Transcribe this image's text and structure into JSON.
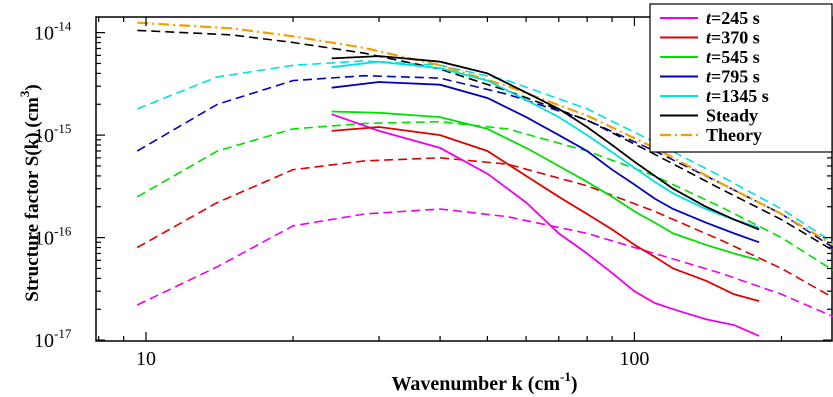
{
  "chart_data": {
    "type": "line",
    "xlabel": "Wavenumber  k (cm",
    "xlabel_exponent": "-1",
    "xlabel_suffix": ")",
    "ylabel": "Structure factor  S(k) (cm",
    "ylabel_exponent": "3",
    "ylabel_suffix": ")",
    "x_scale": "log",
    "y_scale": "log",
    "xlim": [
      7.9,
      255
    ],
    "ylim": [
      9.8e-18,
      1.42e-14
    ],
    "x_ticks": [
      {
        "value": 10,
        "label": "10"
      },
      {
        "value": 100,
        "label": "100"
      }
    ],
    "y_ticks": [
      {
        "value": 1e-14,
        "base": "10",
        "exp": "-14"
      },
      {
        "value": 1e-15,
        "base": "10",
        "exp": "-15"
      },
      {
        "value": 1e-16,
        "base": "10",
        "exp": "-16"
      },
      {
        "value": 1e-17,
        "base": "10",
        "exp": "-17"
      }
    ],
    "legend_position": "top-right",
    "legend": [
      {
        "label": "t=245 s",
        "italic_prefix": "t",
        "text": "=245 s",
        "color": "#ee00ee",
        "style": "solid"
      },
      {
        "label": "t=370 s",
        "italic_prefix": "t",
        "text": "=370 s",
        "color": "#e00000",
        "style": "solid"
      },
      {
        "label": "t=545 s",
        "italic_prefix": "t",
        "text": "=545 s",
        "color": "#00e000",
        "style": "solid"
      },
      {
        "label": "t=795 s",
        "italic_prefix": "t",
        "text": "=795 s",
        "color": "#0000c0",
        "style": "solid"
      },
      {
        "label": "t=1345 s",
        "italic_prefix": "t",
        "text": "=1345 s",
        "color": "#00e0e0",
        "style": "solid"
      },
      {
        "label": "Steady",
        "italic_prefix": "",
        "text": "Steady",
        "color": "#000000",
        "style": "solid"
      },
      {
        "label": "Theory",
        "italic_prefix": "",
        "text": "Theory",
        "color": "#f0a000",
        "style": "dashdot"
      }
    ],
    "series": [
      {
        "name": "t=245 s",
        "color": "#ee00ee",
        "kind": "dashed",
        "x": [
          9.6,
          14,
          20,
          28,
          40,
          55,
          80,
          110,
          150,
          200,
          255
        ],
        "y": [
          2.2e-17,
          5.2e-17,
          1.3e-16,
          1.7e-16,
          1.9e-16,
          1.6e-16,
          1.1e-16,
          7e-17,
          4.5e-17,
          2.8e-17,
          1.7e-17
        ]
      },
      {
        "name": "t=370 s",
        "color": "#e00000",
        "kind": "dashed",
        "x": [
          9.6,
          14,
          20,
          28,
          40,
          55,
          80,
          110,
          150,
          200,
          255
        ],
        "y": [
          8e-17,
          2.2e-16,
          4.6e-16,
          5.6e-16,
          6e-16,
          5.2e-16,
          3.2e-16,
          1.8e-16,
          9.5e-17,
          5e-17,
          2.6e-17
        ]
      },
      {
        "name": "t=545 s",
        "color": "#00e000",
        "kind": "dashed",
        "x": [
          9.6,
          14,
          20,
          28,
          40,
          55,
          80,
          110,
          150,
          200,
          255
        ],
        "y": [
          2.5e-16,
          7e-16,
          1.15e-15,
          1.3e-15,
          1.35e-15,
          1.15e-15,
          7e-16,
          4e-16,
          2e-16,
          1e-16,
          4.8e-17
        ]
      },
      {
        "name": "t=795 s",
        "color": "#0000c0",
        "kind": "dashed",
        "x": [
          9.6,
          14,
          20,
          28,
          40,
          55,
          80,
          110,
          150,
          200,
          255
        ],
        "y": [
          7e-16,
          2e-15,
          3.4e-15,
          3.8e-15,
          3.6e-15,
          2.5e-15,
          1.4e-15,
          7e-16,
          3.4e-16,
          1.7e-16,
          8e-17
        ]
      },
      {
        "name": "t=1345 s",
        "color": "#00e0e0",
        "kind": "dashed",
        "x": [
          9.6,
          14,
          20,
          28,
          40,
          55,
          80,
          110,
          150,
          200,
          255
        ],
        "y": [
          1.8e-15,
          3.7e-15,
          4.8e-15,
          5.3e-15,
          4.8e-15,
          3.4e-15,
          1.8e-15,
          8.5e-16,
          4e-16,
          1.9e-16,
          9e-17
        ]
      },
      {
        "name": "Steady",
        "color": "#000000",
        "kind": "dashed",
        "x": [
          9.6,
          15,
          20,
          28,
          40,
          55,
          80,
          110,
          150,
          200,
          255
        ],
        "y": [
          1.05e-14,
          9.5e-15,
          8e-15,
          6.3e-15,
          4.4e-15,
          2.7e-15,
          1.4e-15,
          6.5e-16,
          3e-16,
          1.5e-16,
          7.5e-17
        ]
      },
      {
        "name": "Theory",
        "color": "#f0a000",
        "kind": "dashdot",
        "x": [
          9.6,
          15,
          20,
          28,
          40,
          55,
          80,
          110,
          150,
          200,
          255
        ],
        "y": [
          1.25e-14,
          1.1e-14,
          9.2e-15,
          7.1e-15,
          4.8e-15,
          3e-15,
          1.55e-15,
          7.5e-16,
          3.4e-16,
          1.7e-16,
          8.5e-17
        ]
      },
      {
        "name": "t=245 s",
        "color": "#ee00ee",
        "kind": "solid",
        "x": [
          24,
          30,
          40,
          50,
          60,
          70,
          80,
          90,
          100,
          110,
          120,
          140,
          160,
          180
        ],
        "y": [
          1.6e-15,
          1.1e-15,
          7.5e-16,
          4.2e-16,
          2.2e-16,
          1.1e-16,
          7e-17,
          4.5e-17,
          3e-17,
          2.3e-17,
          2e-17,
          1.6e-17,
          1.4e-17,
          1.1e-17
        ]
      },
      {
        "name": "t=370 s",
        "color": "#e00000",
        "kind": "solid",
        "x": [
          24,
          30,
          40,
          50,
          60,
          70,
          80,
          90,
          100,
          110,
          120,
          140,
          160,
          180
        ],
        "y": [
          1.1e-15,
          1.2e-15,
          1e-15,
          7e-16,
          4e-16,
          2.5e-16,
          1.7e-16,
          1.2e-16,
          8.5e-17,
          6.5e-17,
          5e-17,
          3.8e-17,
          2.8e-17,
          2.4e-17
        ]
      },
      {
        "name": "t=545 s",
        "color": "#00e000",
        "kind": "solid",
        "x": [
          24,
          30,
          40,
          50,
          60,
          70,
          80,
          90,
          100,
          110,
          120,
          140,
          160,
          180
        ],
        "y": [
          1.7e-15,
          1.65e-15,
          1.5e-15,
          1.15e-15,
          7.5e-16,
          5e-16,
          3.5e-16,
          2.5e-16,
          1.8e-16,
          1.4e-16,
          1.1e-16,
          8.5e-17,
          7e-17,
          6e-17
        ]
      },
      {
        "name": "t=795 s",
        "color": "#0000c0",
        "kind": "solid",
        "x": [
          24,
          30,
          40,
          50,
          60,
          70,
          80,
          90,
          100,
          110,
          120,
          140,
          160,
          180
        ],
        "y": [
          2.9e-15,
          3.3e-15,
          3.1e-15,
          2.3e-15,
          1.5e-15,
          1e-15,
          7e-16,
          4.6e-16,
          3.3e-16,
          2.4e-16,
          1.9e-16,
          1.4e-16,
          1.1e-16,
          9e-17
        ]
      },
      {
        "name": "t=1345 s",
        "color": "#00e0e0",
        "kind": "solid",
        "x": [
          24,
          30,
          40,
          50,
          60,
          70,
          80,
          90,
          100,
          110,
          120,
          140,
          160,
          180
        ],
        "y": [
          4.6e-15,
          5.2e-15,
          4.5e-15,
          3.4e-15,
          2.2e-15,
          1.5e-15,
          1e-15,
          6.8e-16,
          4.8e-16,
          3.5e-16,
          2.7e-16,
          1.9e-16,
          1.5e-16,
          1.25e-16
        ]
      },
      {
        "name": "Steady",
        "color": "#000000",
        "kind": "solid",
        "x": [
          24,
          30,
          40,
          50,
          60,
          70,
          80,
          90,
          100,
          110,
          120,
          140,
          160,
          180
        ],
        "y": [
          5.6e-15,
          5.9e-15,
          5.2e-15,
          4e-15,
          2.6e-15,
          1.8e-15,
          1.2e-15,
          8e-16,
          5.5e-16,
          4e-16,
          3e-16,
          2e-16,
          1.5e-16,
          1.2e-16
        ]
      }
    ]
  }
}
